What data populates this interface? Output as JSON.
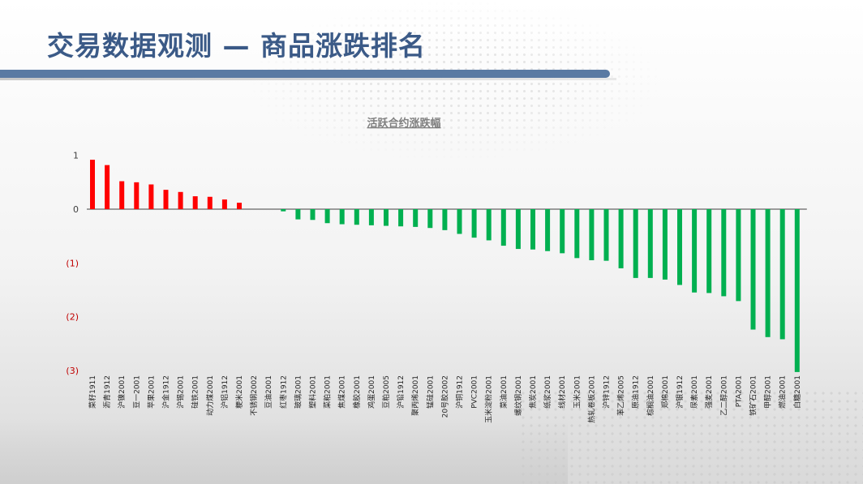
{
  "page_title": "交易数据观测 — 商品涨跌排名",
  "colors": {
    "title": "#3b5a87",
    "bar_up": "#ff0000",
    "bar_down": "#00b050",
    "neg_tick": "#c00000"
  },
  "chart_data": {
    "type": "bar",
    "title": "活跃合约涨跌幅",
    "xlabel": "",
    "ylabel": "",
    "ylim": [
      -3,
      1
    ],
    "y_ticks": [
      {
        "value": 1,
        "label": "1"
      },
      {
        "value": 0,
        "label": "0"
      },
      {
        "value": -1,
        "label": "(1)"
      },
      {
        "value": -2,
        "label": "(2)"
      },
      {
        "value": -3,
        "label": "(3)"
      }
    ],
    "categories": [
      "菜籽1911",
      "沥青1912",
      "沪镍2001",
      "豆一2001",
      "苹果2001",
      "沪金1912",
      "沪锡2001",
      "硅铁2001",
      "动力煤2001",
      "沪铝1912",
      "粳米2001",
      "不锈钢2002",
      "豆油2001",
      "红枣1912",
      "玻璃2001",
      "塑料2001",
      "菜粕2001",
      "焦煤2001",
      "橡胶2001",
      "鸡蛋2001",
      "豆粕2005",
      "沪铅1912",
      "聚丙烯2001",
      "锰硅2001",
      "20号胶2002",
      "沪铜1912",
      "PVC2001",
      "玉米淀粉2001",
      "菜油2001",
      "螺纹钢2001",
      "焦炭2001",
      "纸浆2001",
      "线材2001",
      "玉米2001",
      "热轧卷板2001",
      "沪锌1912",
      "苯乙烯2005",
      "原油1912",
      "棕榈油2001",
      "郑棉2001",
      "沪银1912",
      "尿素2001",
      "强麦2001",
      "乙二醇2001",
      "PTA2001",
      "铁矿石2001",
      "甲醇2001",
      "燃油2001",
      "白糖2001"
    ],
    "values": [
      0.92,
      0.82,
      0.52,
      0.5,
      0.46,
      0.36,
      0.32,
      0.24,
      0.23,
      0.18,
      0.12,
      0.0,
      0.0,
      -0.04,
      -0.19,
      -0.2,
      -0.26,
      -0.28,
      -0.29,
      -0.3,
      -0.31,
      -0.32,
      -0.33,
      -0.35,
      -0.39,
      -0.46,
      -0.53,
      -0.58,
      -0.68,
      -0.74,
      -0.75,
      -0.78,
      -0.82,
      -0.91,
      -0.95,
      -0.96,
      -1.1,
      -1.28,
      -1.28,
      -1.31,
      -1.41,
      -1.55,
      -1.56,
      -1.62,
      -1.71,
      -2.24,
      -2.38,
      -2.42,
      -3.03
    ]
  }
}
